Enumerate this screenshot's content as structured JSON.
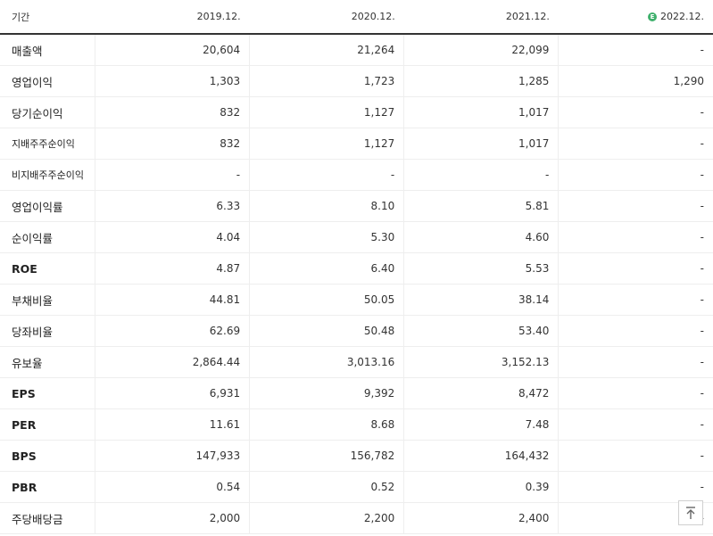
{
  "table": {
    "header_label": "기간",
    "periods": [
      "2019.12.",
      "2020.12.",
      "2021.12.",
      "2022.12."
    ],
    "estimate_icon": "estimate-badge-icon",
    "estimate_icon_text": "E",
    "rows": [
      {
        "label": "매출액",
        "values": [
          "20,604",
          "21,264",
          "22,099",
          "-"
        ]
      },
      {
        "label": "영업이익",
        "values": [
          "1,303",
          "1,723",
          "1,285",
          "1,290"
        ]
      },
      {
        "label": "당기순이익",
        "values": [
          "832",
          "1,127",
          "1,017",
          "-"
        ]
      },
      {
        "label": "지배주주순이익",
        "values": [
          "832",
          "1,127",
          "1,017",
          "-"
        ]
      },
      {
        "label": "비지배주주순이익",
        "values": [
          "-",
          "-",
          "-",
          "-"
        ]
      },
      {
        "label": "영업이익률",
        "values": [
          "6.33",
          "8.10",
          "5.81",
          "-"
        ]
      },
      {
        "label": "순이익률",
        "values": [
          "4.04",
          "5.30",
          "4.60",
          "-"
        ]
      },
      {
        "label": "ROE",
        "values": [
          "4.87",
          "6.40",
          "5.53",
          "-"
        ]
      },
      {
        "label": "부채비율",
        "values": [
          "44.81",
          "50.05",
          "38.14",
          "-"
        ]
      },
      {
        "label": "당좌비율",
        "values": [
          "62.69",
          "50.48",
          "53.40",
          "-"
        ]
      },
      {
        "label": "유보율",
        "values": [
          "2,864.44",
          "3,013.16",
          "3,152.13",
          "-"
        ]
      },
      {
        "label": "EPS",
        "values": [
          "6,931",
          "9,392",
          "8,472",
          "-"
        ]
      },
      {
        "label": "PER",
        "values": [
          "11.61",
          "8.68",
          "7.48",
          "-"
        ]
      },
      {
        "label": "BPS",
        "values": [
          "147,933",
          "156,782",
          "164,432",
          "-"
        ]
      },
      {
        "label": "PBR",
        "values": [
          "0.54",
          "0.52",
          "0.39",
          "-"
        ]
      },
      {
        "label": "주당배당금",
        "values": [
          "2,000",
          "2,200",
          "2,400",
          "-"
        ]
      }
    ]
  },
  "scroll_top_button": {
    "icon": "arrow-up-to-top-icon"
  },
  "colors": {
    "estimate": "#3fb06c",
    "header_rule": "#333333",
    "row_rule": "#eeeeee",
    "group_rule": "#bbbbbb"
  }
}
